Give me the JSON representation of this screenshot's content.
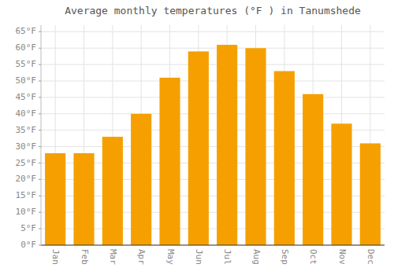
{
  "chart_data": {
    "type": "bar",
    "title": "Average monthly temperatures (°F ) in Tanumshede",
    "categories": [
      "Jan",
      "Feb",
      "Mar",
      "Apr",
      "May",
      "Jun",
      "Jul",
      "Aug",
      "Sep",
      "Oct",
      "Nov",
      "Dec"
    ],
    "values": [
      28,
      28,
      33,
      40,
      51,
      59,
      61,
      60,
      53,
      46,
      37,
      31
    ],
    "color": "#F5A000",
    "ylim": [
      0,
      67
    ],
    "yticks": [
      {
        "value": 0,
        "label": "0°F"
      },
      {
        "value": 5,
        "label": "5°F"
      },
      {
        "value": 10,
        "label": "10°F"
      },
      {
        "value": 15,
        "label": "15°F"
      },
      {
        "value": 20,
        "label": "20°F"
      },
      {
        "value": 25,
        "label": "25°F"
      },
      {
        "value": 30,
        "label": "30°F"
      },
      {
        "value": 35,
        "label": "35°F"
      },
      {
        "value": 40,
        "label": "40°F"
      },
      {
        "value": 45,
        "label": "45°F"
      },
      {
        "value": 50,
        "label": "50°F"
      },
      {
        "value": 55,
        "label": "55°F"
      },
      {
        "value": 60,
        "label": "60°F"
      },
      {
        "value": 65,
        "label": "65°F"
      }
    ],
    "grid": true
  }
}
